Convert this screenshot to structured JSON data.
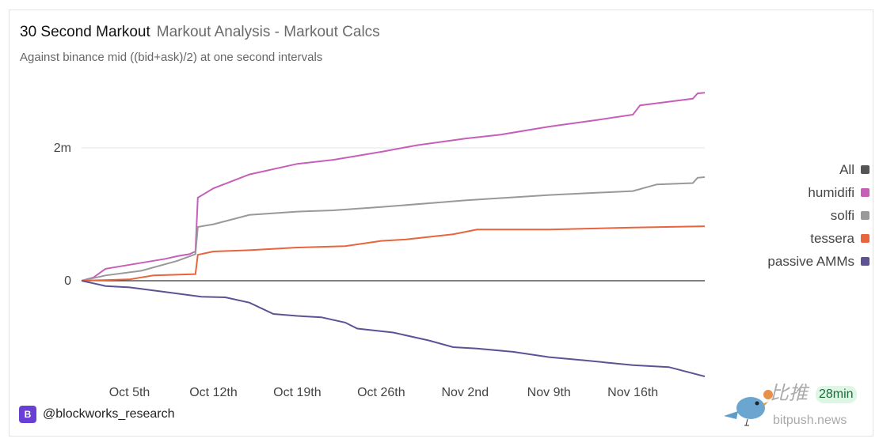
{
  "header": {
    "title": "30 Second Markout",
    "subtitle": "Markout Analysis - Markout Calcs",
    "description": "Against binance mid ((bid+ask)/2) at one second intervals"
  },
  "footer": {
    "handle": "@blockworks_research",
    "logo_letter": "B"
  },
  "watermark": {
    "cn": "比推",
    "en": "bitpush.news",
    "badge": "28min"
  },
  "chart_data": {
    "type": "line",
    "title": "30 Second Markout",
    "xlabel": "",
    "ylabel": "",
    "x_ticks": [
      "Oct 5th",
      "Oct 12th",
      "Oct 19th",
      "Oct 26th",
      "Nov 2nd",
      "Nov 9th",
      "Nov 16th"
    ],
    "y_ticks": [
      {
        "value": 0,
        "label": "0"
      },
      {
        "value": 2,
        "label": "2m"
      }
    ],
    "xlim": [
      "Oct 1",
      "Nov 22"
    ],
    "ylim": [
      -1.5,
      3.1
    ],
    "y_unit": "m",
    "legend_position": "right",
    "series": [
      {
        "name": "All",
        "color": "#555555",
        "points": []
      },
      {
        "name": "humidifi",
        "color": "#c65fb9",
        "points": [
          [
            "Oct 1",
            0
          ],
          [
            "Oct 2",
            0.05
          ],
          [
            "Oct 3",
            0.18
          ],
          [
            "Oct 6",
            0.27
          ],
          [
            "Oct 8",
            0.33
          ],
          [
            "Oct 9",
            0.37
          ],
          [
            "Oct 10",
            0.4
          ],
          [
            "Oct 10.5",
            0.44
          ],
          [
            "Oct 10.7",
            1.25
          ],
          [
            "Oct 12",
            1.39
          ],
          [
            "Oct 15",
            1.6
          ],
          [
            "Oct 19",
            1.76
          ],
          [
            "Oct 22",
            1.82
          ],
          [
            "Oct 26",
            1.94
          ],
          [
            "Oct 29",
            2.04
          ],
          [
            "Nov 2",
            2.14
          ],
          [
            "Nov 5",
            2.2
          ],
          [
            "Nov 9",
            2.32
          ],
          [
            "Nov 13",
            2.42
          ],
          [
            "Nov 16",
            2.5
          ],
          [
            "Nov 16.6",
            2.64
          ],
          [
            "Nov 21",
            2.74
          ],
          [
            "Nov 21.4",
            2.82
          ],
          [
            "Nov 22",
            2.83
          ]
        ]
      },
      {
        "name": "solfi",
        "color": "#999999",
        "points": [
          [
            "Oct 1",
            0
          ],
          [
            "Oct 3",
            0.08
          ],
          [
            "Oct 6",
            0.15
          ],
          [
            "Oct 9",
            0.3
          ],
          [
            "Oct 10.5",
            0.4
          ],
          [
            "Oct 10.7",
            0.81
          ],
          [
            "Oct 12",
            0.85
          ],
          [
            "Oct 15",
            0.99
          ],
          [
            "Oct 19",
            1.04
          ],
          [
            "Oct 22",
            1.06
          ],
          [
            "Oct 26",
            1.11
          ],
          [
            "Nov 2",
            1.21
          ],
          [
            "Nov 9",
            1.29
          ],
          [
            "Nov 16",
            1.35
          ],
          [
            "Nov 18",
            1.45
          ],
          [
            "Nov 21",
            1.47
          ],
          [
            "Nov 21.4",
            1.55
          ],
          [
            "Nov 22",
            1.56
          ]
        ]
      },
      {
        "name": "tessera",
        "color": "#e8643c",
        "points": [
          [
            "Oct 1",
            0
          ],
          [
            "Oct 5",
            0.02
          ],
          [
            "Oct 7",
            0.08
          ],
          [
            "Oct 10.5",
            0.1
          ],
          [
            "Oct 10.7",
            0.39
          ],
          [
            "Oct 12",
            0.44
          ],
          [
            "Oct 15",
            0.46
          ],
          [
            "Oct 19",
            0.5
          ],
          [
            "Oct 23",
            0.52
          ],
          [
            "Oct 26",
            0.6
          ],
          [
            "Oct 28",
            0.62
          ],
          [
            "Nov 1",
            0.7
          ],
          [
            "Nov 3",
            0.77
          ],
          [
            "Nov 9",
            0.77
          ],
          [
            "Nov 16",
            0.8
          ],
          [
            "Nov 22",
            0.82
          ]
        ]
      },
      {
        "name": "passive AMMs",
        "color": "#5b5394",
        "points": [
          [
            "Oct 1",
            0
          ],
          [
            "Oct 3",
            -0.08
          ],
          [
            "Oct 5",
            -0.1
          ],
          [
            "Oct 8",
            -0.17
          ],
          [
            "Oct 11",
            -0.24
          ],
          [
            "Oct 13",
            -0.25
          ],
          [
            "Oct 15",
            -0.33
          ],
          [
            "Oct 17",
            -0.5
          ],
          [
            "Oct 19",
            -0.53
          ],
          [
            "Oct 21",
            -0.55
          ],
          [
            "Oct 23",
            -0.63
          ],
          [
            "Oct 24",
            -0.72
          ],
          [
            "Oct 27",
            -0.78
          ],
          [
            "Oct 30",
            -0.9
          ],
          [
            "Nov 1",
            -1.0
          ],
          [
            "Nov 3",
            -1.02
          ],
          [
            "Nov 6",
            -1.07
          ],
          [
            "Nov 9",
            -1.15
          ],
          [
            "Nov 12",
            -1.2
          ],
          [
            "Nov 16",
            -1.27
          ],
          [
            "Nov 19",
            -1.3
          ],
          [
            "Nov 22",
            -1.44
          ]
        ]
      }
    ]
  }
}
